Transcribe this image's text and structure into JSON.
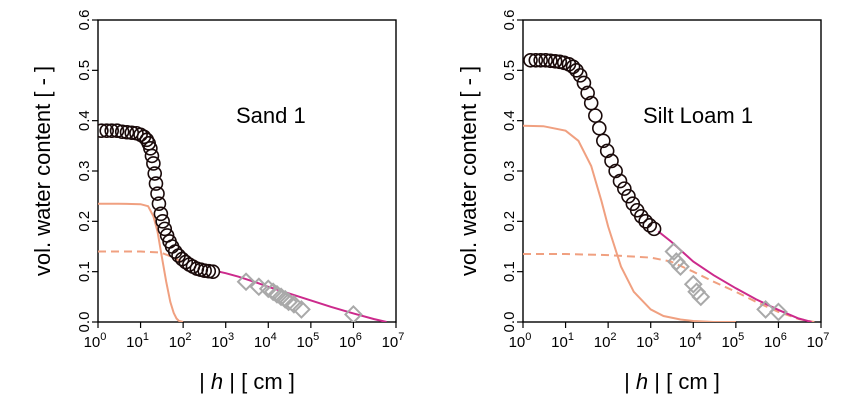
{
  "chart_data": [
    {
      "type": "scatter",
      "label": "Sand 1",
      "ylabel": "vol. water content [ - ]",
      "xlabel_prefix": "| ",
      "xlabel_var": "h",
      "xlabel_suffix": " | [ cm ]",
      "xscale": "log",
      "xlim": [
        1,
        10000000
      ],
      "ylim": [
        0,
        0.6
      ],
      "xtick_exponents": [
        "0",
        "1",
        "2",
        "3",
        "4",
        "5",
        "6",
        "7"
      ],
      "ytick_labels": [
        "0.0",
        "0.1",
        "0.2",
        "0.3",
        "0.4",
        "0.5",
        "0.6"
      ],
      "circles": {
        "x": [
          1.2,
          1.6,
          2.1,
          2.8,
          3.7,
          4.8,
          6.2,
          8.0,
          10.0,
          12.0,
          14.0,
          15.5,
          17.0,
          18.5,
          20.0,
          21.5,
          23.0,
          25.0,
          27.0,
          30.0,
          33.0,
          37.0,
          42.0,
          48.0,
          55.0,
          65.0,
          78.0,
          95.0,
          115.0,
          140.0,
          170.0,
          210.0,
          260.0,
          320.0,
          400.0,
          500.0
        ],
        "y": [
          0.38,
          0.38,
          0.38,
          0.38,
          0.378,
          0.377,
          0.376,
          0.375,
          0.372,
          0.368,
          0.362,
          0.355,
          0.345,
          0.33,
          0.315,
          0.295,
          0.275,
          0.255,
          0.235,
          0.215,
          0.2,
          0.185,
          0.172,
          0.16,
          0.15,
          0.14,
          0.132,
          0.125,
          0.119,
          0.114,
          0.11,
          0.106,
          0.104,
          0.102,
          0.101,
          0.1
        ]
      },
      "diamonds": {
        "x": [
          3000,
          6000,
          10000,
          13000,
          16000,
          20000,
          25000,
          30000,
          40000,
          60000,
          1000000
        ],
        "y": [
          0.08,
          0.07,
          0.066,
          0.06,
          0.055,
          0.05,
          0.045,
          0.04,
          0.035,
          0.025,
          0.015
        ]
      },
      "total_curve": {
        "x": [
          700,
          1000,
          2000,
          5000,
          10000,
          30000,
          100000,
          300000,
          1000000,
          3000000,
          6000000
        ],
        "y": [
          0.1,
          0.097,
          0.09,
          0.079,
          0.07,
          0.057,
          0.043,
          0.03,
          0.017,
          0.006,
          0.0
        ]
      },
      "solid_component": {
        "x": [
          1,
          3,
          10,
          15,
          20,
          25,
          30,
          40,
          50,
          60,
          70,
          80,
          100
        ],
        "y": [
          0.235,
          0.235,
          0.234,
          0.23,
          0.21,
          0.18,
          0.14,
          0.08,
          0.04,
          0.018,
          0.007,
          0.002,
          0.0
        ]
      },
      "dashed_component": {
        "x": [
          1,
          10,
          30,
          60,
          100
        ],
        "y": [
          0.14,
          0.14,
          0.138,
          0.128,
          0.118
        ]
      },
      "magenta": "#cc2a8c",
      "salmon": "#f0a080",
      "diamond_color": "#a9a9a9"
    },
    {
      "type": "scatter",
      "label": "Silt Loam 1",
      "ylabel": "vol. water content [ - ]",
      "xlabel_prefix": "| ",
      "xlabel_var": "h",
      "xlabel_suffix": " | [ cm ]",
      "xscale": "log",
      "xlim": [
        1,
        10000000
      ],
      "ylim": [
        0,
        0.6
      ],
      "xtick_exponents": [
        "0",
        "1",
        "2",
        "3",
        "4",
        "5",
        "6",
        "7"
      ],
      "ytick_labels": [
        "0.0",
        "0.1",
        "0.2",
        "0.3",
        "0.4",
        "0.5",
        "0.6"
      ],
      "circles": {
        "x": [
          1.5,
          2.0,
          2.6,
          3.4,
          4.4,
          5.7,
          7.3,
          9.3,
          12.0,
          15.0,
          18.0,
          22.0,
          27.0,
          33.0,
          40.0,
          50.0,
          62.0,
          77.0,
          95.0,
          120.0,
          150.0,
          190.0,
          240.0,
          300.0,
          380.0,
          480.0,
          600.0,
          760.0,
          950.0,
          1200.0
        ],
        "y": [
          0.52,
          0.52,
          0.52,
          0.52,
          0.519,
          0.518,
          0.517,
          0.515,
          0.512,
          0.507,
          0.5,
          0.49,
          0.475,
          0.455,
          0.435,
          0.41,
          0.385,
          0.36,
          0.34,
          0.32,
          0.3,
          0.28,
          0.265,
          0.25,
          0.235,
          0.222,
          0.21,
          0.2,
          0.192,
          0.185
        ]
      },
      "diamonds": {
        "x": [
          3500,
          4000,
          5000,
          10000,
          12000,
          15000,
          500000,
          1000000
        ],
        "y": [
          0.14,
          0.12,
          0.11,
          0.075,
          0.06,
          0.05,
          0.025,
          0.02
        ]
      },
      "total_curve": {
        "x": [
          1500,
          3000,
          10000,
          30000,
          100000,
          300000,
          1000000,
          3000000,
          6000000
        ],
        "y": [
          0.18,
          0.16,
          0.12,
          0.093,
          0.067,
          0.045,
          0.024,
          0.007,
          0.0
        ]
      },
      "solid_component": {
        "x": [
          1,
          3,
          10,
          20,
          40,
          70,
          100,
          200,
          400,
          1000,
          2000,
          5000,
          10000,
          30000,
          100000
        ],
        "y": [
          0.39,
          0.389,
          0.38,
          0.36,
          0.31,
          0.24,
          0.19,
          0.11,
          0.06,
          0.025,
          0.012,
          0.005,
          0.002,
          0.0,
          0.0
        ]
      },
      "dashed_component": {
        "x": [
          1,
          10,
          100,
          1000,
          3000,
          10000,
          30000,
          100000,
          300000,
          1000000,
          3000000,
          7000000
        ],
        "y": [
          0.135,
          0.135,
          0.133,
          0.128,
          0.12,
          0.1,
          0.08,
          0.06,
          0.04,
          0.02,
          0.006,
          0.0
        ]
      },
      "magenta": "#cc2a8c",
      "salmon": "#f0a080",
      "diamond_color": "#a9a9a9"
    }
  ]
}
